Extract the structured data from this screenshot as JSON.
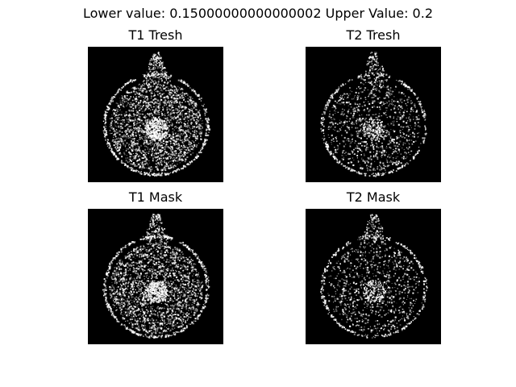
{
  "figure": {
    "suptitle": "Lower value: 0.15000000000000002 Upper Value: 0.2",
    "panels": [
      {
        "title": "T1 Tresh",
        "background": "#000000",
        "foreground": "#ffffff",
        "density": 1.0
      },
      {
        "title": "T2 Tresh",
        "background": "#000000",
        "foreground": "#ffffff",
        "density": 0.45
      },
      {
        "title": "T1 Mask",
        "background": "#000000",
        "foreground": "#ffffff",
        "density": 0.9
      },
      {
        "title": "T2 Mask",
        "background": "#000000",
        "foreground": "#ffffff",
        "density": 0.4
      }
    ]
  }
}
